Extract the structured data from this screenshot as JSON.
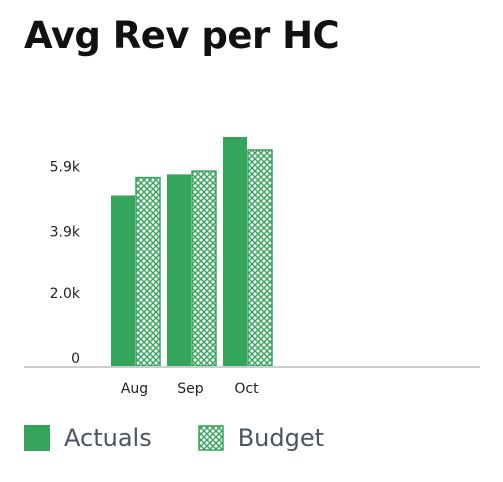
{
  "title": "Avg Rev per HC",
  "colors": {
    "actuals": "#34a55a",
    "budget": "#34a55a",
    "axis": "#cccccc",
    "text": "#222222"
  },
  "chart_data": {
    "type": "bar",
    "title": "Avg Rev per HC",
    "xlabel": "",
    "ylabel": "",
    "categories": [
      "Aug",
      "Sep",
      "Oct"
    ],
    "series": [
      {
        "name": "Actuals",
        "pattern": "solid",
        "values": [
          5250,
          5900,
          7050
        ]
      },
      {
        "name": "Budget",
        "pattern": "crosshatch",
        "values": [
          5800,
          6000,
          6650
        ]
      }
    ],
    "ylim": [
      0,
      7050
    ],
    "yticks": [
      0,
      2000,
      3900,
      5900
    ],
    "ytick_labels": [
      "0",
      "2.0k",
      "3.9k",
      "5.9k"
    ],
    "grid": false,
    "legend": "bottom-left"
  },
  "legend": {
    "items": [
      {
        "label": "Actuals"
      },
      {
        "label": "Budget"
      }
    ]
  }
}
